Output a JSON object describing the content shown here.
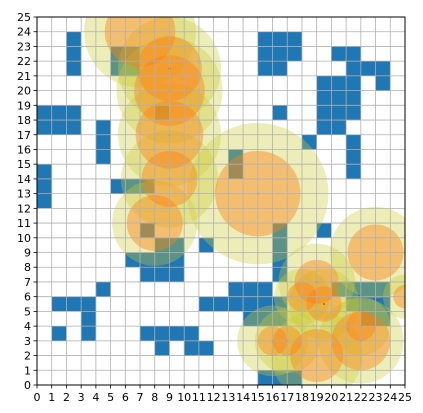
{
  "chart_data": {
    "type": "heatmap",
    "title": "",
    "xlabel": "",
    "ylabel": "",
    "xlim": [
      0,
      25
    ],
    "ylim": [
      0,
      25
    ],
    "grid": true,
    "x_ticks": [
      0,
      1,
      2,
      3,
      4,
      5,
      6,
      7,
      8,
      9,
      10,
      11,
      12,
      13,
      14,
      15,
      16,
      17,
      18,
      19,
      20,
      21,
      22,
      23,
      24,
      25
    ],
    "y_ticks": [
      0,
      1,
      2,
      3,
      4,
      5,
      6,
      7,
      8,
      9,
      10,
      11,
      12,
      13,
      14,
      15,
      16,
      17,
      18,
      19,
      20,
      21,
      22,
      23,
      24,
      25
    ],
    "obstacle_cells": [
      [
        2,
        22
      ],
      [
        2,
        21
      ],
      [
        2,
        23
      ],
      [
        5,
        21
      ],
      [
        5,
        22
      ],
      [
        6,
        22
      ],
      [
        6,
        21
      ],
      [
        15,
        23
      ],
      [
        15,
        22
      ],
      [
        15,
        21
      ],
      [
        16,
        23
      ],
      [
        16,
        22
      ],
      [
        16,
        21
      ],
      [
        17,
        23
      ],
      [
        17,
        22
      ],
      [
        20,
        22
      ],
      [
        21,
        22
      ],
      [
        21,
        21
      ],
      [
        22,
        21
      ],
      [
        23,
        21
      ],
      [
        23,
        20
      ],
      [
        19,
        20
      ],
      [
        20,
        20
      ],
      [
        21,
        20
      ],
      [
        19,
        19
      ],
      [
        20,
        19
      ],
      [
        21,
        19
      ],
      [
        19,
        18
      ],
      [
        20,
        18
      ],
      [
        21,
        18
      ],
      [
        16,
        18
      ],
      [
        19,
        17
      ],
      [
        20,
        17
      ],
      [
        18,
        16
      ],
      [
        21,
        16
      ],
      [
        21,
        15
      ],
      [
        21,
        14
      ],
      [
        0,
        18
      ],
      [
        1,
        18
      ],
      [
        2,
        18
      ],
      [
        0,
        17
      ],
      [
        1,
        17
      ],
      [
        2,
        17
      ],
      [
        4,
        17
      ],
      [
        4,
        16
      ],
      [
        4,
        15
      ],
      [
        8,
        18
      ],
      [
        13,
        14
      ],
      [
        13,
        15
      ],
      [
        0,
        14
      ],
      [
        0,
        13
      ],
      [
        0,
        12
      ],
      [
        5,
        13
      ],
      [
        6,
        13
      ],
      [
        7,
        13
      ],
      [
        19,
        10
      ],
      [
        7,
        10
      ],
      [
        16,
        10
      ],
      [
        16,
        9
      ],
      [
        16,
        8
      ],
      [
        16,
        7
      ],
      [
        8,
        9
      ],
      [
        9,
        9
      ],
      [
        11,
        9
      ],
      [
        6,
        8
      ],
      [
        7,
        8
      ],
      [
        8,
        8
      ],
      [
        9,
        8
      ],
      [
        7,
        7
      ],
      [
        8,
        7
      ],
      [
        9,
        7
      ],
      [
        4,
        6
      ],
      [
        20,
        6
      ],
      [
        21,
        6
      ],
      [
        22,
        6
      ],
      [
        23,
        6
      ],
      [
        21,
        5
      ],
      [
        22,
        5
      ],
      [
        23,
        5
      ],
      [
        22,
        4
      ],
      [
        23,
        4
      ],
      [
        13,
        6
      ],
      [
        14,
        6
      ],
      [
        15,
        6
      ],
      [
        13,
        5
      ],
      [
        14,
        5
      ],
      [
        15,
        5
      ],
      [
        16,
        5
      ],
      [
        14,
        4
      ],
      [
        15,
        4
      ],
      [
        16,
        4
      ],
      [
        1,
        5
      ],
      [
        2,
        5
      ],
      [
        3,
        5
      ],
      [
        11,
        5
      ],
      [
        12,
        5
      ],
      [
        3,
        4
      ],
      [
        1,
        3
      ],
      [
        3,
        3
      ],
      [
        7,
        3
      ],
      [
        8,
        3
      ],
      [
        9,
        3
      ],
      [
        10,
        3
      ],
      [
        8,
        2
      ],
      [
        10,
        2
      ],
      [
        11,
        2
      ],
      [
        15,
        0
      ],
      [
        16,
        0
      ],
      [
        17,
        0
      ]
    ],
    "influence_circles": [
      {
        "x": 7.0,
        "y": 24.0,
        "r_inner": 2.4,
        "r_outer": 3.8
      },
      {
        "x": 9.0,
        "y": 21.5,
        "r_inner": 2.2,
        "r_outer": 3.5
      },
      {
        "x": 9.0,
        "y": 20.0,
        "r_inner": 2.4,
        "r_outer": 3.6
      },
      {
        "x": 9.0,
        "y": 17.0,
        "r_inner": 2.3,
        "r_outer": 3.5
      },
      {
        "x": 9.0,
        "y": 14.0,
        "r_inner": 1.9,
        "r_outer": 3.3
      },
      {
        "x": 8.0,
        "y": 11.0,
        "r_inner": 1.9,
        "r_outer": 2.9
      },
      {
        "x": 15.0,
        "y": 13.0,
        "r_inner": 2.9,
        "r_outer": 4.8
      },
      {
        "x": 23.0,
        "y": 9.0,
        "r_inner": 1.9,
        "r_outer": 3.1
      },
      {
        "x": 19.0,
        "y": 7.0,
        "r_inner": 1.5,
        "r_outer": 2.6
      },
      {
        "x": 18.0,
        "y": 6.0,
        "r_inner": 1.0,
        "r_outer": 1.9
      },
      {
        "x": 25.0,
        "y": 6.0,
        "r_inner": 0.8,
        "r_outer": 1.5
      },
      {
        "x": 22.0,
        "y": 4.0,
        "r_inner": 1.0,
        "r_outer": 2.0
      },
      {
        "x": 22.0,
        "y": 3.0,
        "r_inner": 2.0,
        "r_outer": 2.9
      },
      {
        "x": 16.0,
        "y": 3.0,
        "r_inner": 1.0,
        "r_outer": 2.4
      },
      {
        "x": 17.0,
        "y": 3.0,
        "r_inner": 1.0,
        "r_outer": 2.2
      },
      {
        "x": 19.0,
        "y": 2.0,
        "r_inner": 1.8,
        "r_outer": 3.1
      },
      {
        "x": 19.5,
        "y": 5.5,
        "r_inner": 1.2,
        "r_outer": 2.4
      }
    ],
    "colors": {
      "obstacle": "#1f77b4",
      "outer_ring": "#cccc33",
      "outer_alpha": 0.35,
      "inner_disk": "#ff7f0e",
      "inner_alpha": 0.42,
      "center_dot": "#c0392b",
      "grid": "#b0b0b0",
      "axis": "#000000"
    }
  }
}
